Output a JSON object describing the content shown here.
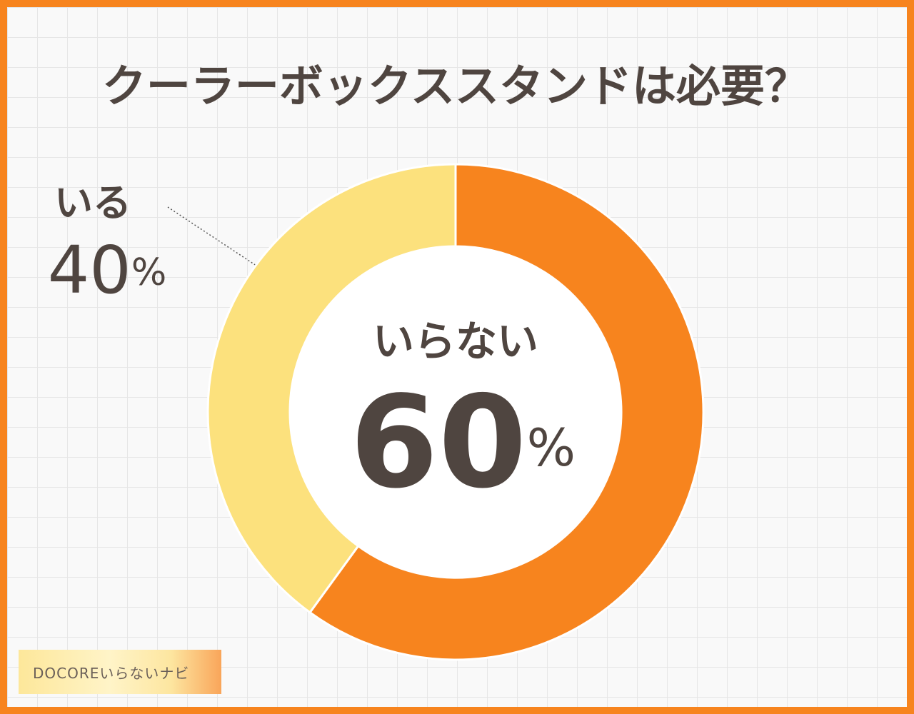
{
  "chart_data": {
    "type": "pie",
    "title": "クーラーボックススタンドは必要？",
    "categories": [
      "いらない",
      "いる"
    ],
    "values": [
      60,
      40
    ],
    "value_labels": [
      "60%",
      "40%"
    ],
    "colors": [
      "#f7841e",
      "#fce17d"
    ]
  },
  "source": "DOCOREいらないナビ"
}
